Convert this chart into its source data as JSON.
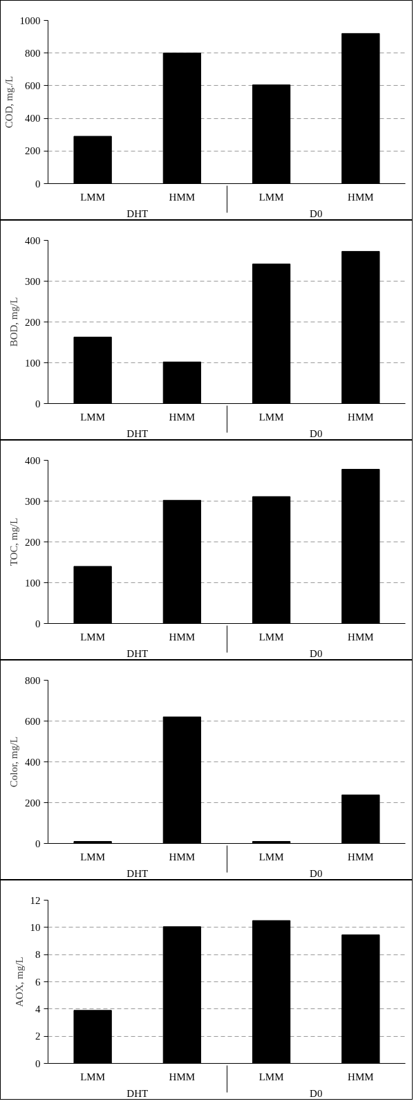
{
  "chart_data": [
    {
      "type": "bar",
      "ylabel": "COD, mg./L",
      "categories": [
        "LMM",
        "HMM",
        "LMM",
        "HMM"
      ],
      "annotations": [
        "DHT",
        "D0"
      ],
      "values": [
        290,
        800,
        605,
        920
      ],
      "color": "#000000",
      "ylim": [
        0,
        1000
      ],
      "yticks": [
        0,
        200,
        400,
        600,
        800,
        1000
      ],
      "grid": "y"
    },
    {
      "type": "bar",
      "ylabel": "BOD, mg/L",
      "categories": [
        "LMM",
        "HMM",
        "LMM",
        "HMM"
      ],
      "annotations": [
        "DHT",
        "D0"
      ],
      "values": [
        163,
        102,
        342,
        373
      ],
      "color": "#000000",
      "ylim": [
        0,
        400
      ],
      "yticks": [
        0,
        100,
        200,
        300,
        400
      ],
      "grid": "y"
    },
    {
      "type": "bar",
      "ylabel": "TOC, mg/L",
      "categories": [
        "LMM",
        "HMM",
        "LMM",
        "HMM"
      ],
      "annotations": [
        "DHT",
        "D0"
      ],
      "values": [
        140,
        302,
        311,
        378
      ],
      "color": "#000000",
      "ylim": [
        0,
        400
      ],
      "yticks": [
        0,
        100,
        200,
        300,
        400
      ],
      "grid": "y"
    },
    {
      "type": "bar",
      "ylabel": "Color, mg/L",
      "categories": [
        "LMM",
        "HMM",
        "LMM",
        "HMM"
      ],
      "annotations": [
        "DHT",
        "D0"
      ],
      "values": [
        10,
        620,
        10,
        238
      ],
      "color": "#000000",
      "ylim": [
        0,
        800
      ],
      "yticks": [
        0,
        200,
        400,
        600,
        800
      ],
      "grid": "y"
    },
    {
      "type": "bar",
      "ylabel": "AOX, mg/L",
      "categories": [
        "LMM",
        "HMM",
        "LMM",
        "HMM"
      ],
      "annotations": [
        "DHT",
        "D0"
      ],
      "values": [
        3.9,
        10.05,
        10.5,
        9.45
      ],
      "color": "#000000",
      "ylim": [
        0,
        12
      ],
      "yticks": [
        0,
        2,
        4,
        6,
        8,
        10,
        12
      ],
      "grid": "y"
    }
  ]
}
